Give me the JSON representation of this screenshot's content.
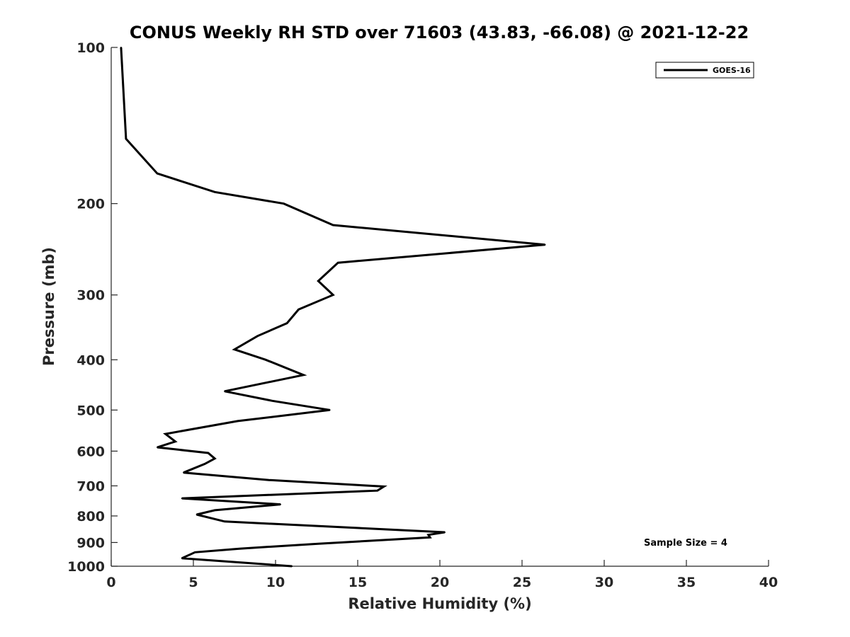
{
  "chart_data": {
    "type": "line",
    "title": "CONUS Weekly RH STD over 71603 (43.83, -66.08) @ 2021-12-22",
    "xlabel": "Relative Humidity (%)",
    "ylabel": "Pressure (mb)",
    "xlim": [
      0,
      40
    ],
    "ylim": [
      100,
      1000
    ],
    "yscale": "log",
    "y_inverted": true,
    "grid": false,
    "legend_position": "top-right",
    "x_ticks": [
      "0",
      "5",
      "10",
      "15",
      "20",
      "25",
      "30",
      "35",
      "40"
    ],
    "y_ticks": [
      "100",
      "200",
      "300",
      "400",
      "500",
      "600",
      "700",
      "800",
      "900",
      "1000"
    ],
    "annotation": "Sample Size = 4",
    "series": [
      {
        "name": "GOES-16",
        "color": "#000000",
        "x": [
          0.6,
          0.9,
          2.8,
          6.3,
          10.5,
          13.5,
          26.4,
          13.8,
          12.6,
          13.5,
          11.4,
          10.7,
          8.9,
          7.5,
          9.4,
          11.7,
          6.9,
          9.8,
          13.3,
          7.7,
          3.3,
          3.9,
          2.8,
          5.9,
          6.3,
          5.7,
          4.4,
          9.6,
          16.6,
          16.2,
          4.3,
          10.3,
          6.3,
          5.2,
          6.9,
          20.3,
          19.3,
          19.4,
          12.6,
          7.8,
          5.1,
          4.3,
          11.0
        ],
        "y": [
          100,
          150,
          175,
          190,
          200,
          220,
          240,
          260,
          282,
          300,
          320,
          340,
          360,
          382,
          400,
          428,
          460,
          480,
          500,
          525,
          556,
          575,
          590,
          605,
          620,
          635,
          660,
          682,
          702,
          715,
          740,
          760,
          780,
          795,
          820,
          860,
          870,
          880,
          905,
          925,
          940,
          965,
          1000
        ]
      }
    ]
  }
}
